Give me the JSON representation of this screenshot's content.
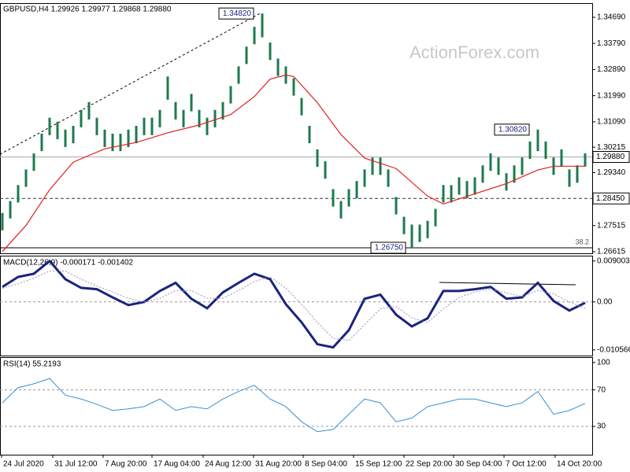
{
  "chart_data": [
    {
      "type": "ohlc",
      "title": "GBPUSD,H4  1.29926 1.29977 1.29868 1.29880",
      "watermark": "ActionForex.com",
      "color": "#1e7a4c",
      "xlim": [
        -0.3,
        74.9
      ],
      "ylim": [
        1.2656,
        1.3515
      ],
      "yticks": [
        {
          "value": 1.3469,
          "label": "1.34690"
        },
        {
          "value": 1.3379,
          "label": "1.33790"
        },
        {
          "value": 1.3289,
          "label": "1.32890"
        },
        {
          "value": 1.3199,
          "label": "1.31990"
        },
        {
          "value": 1.3109,
          "label": "1.31090"
        },
        {
          "value": 1.30215,
          "label": "1.30215"
        },
        {
          "value": 1.2934,
          "label": "1.29340"
        },
        {
          "value": 1.27515,
          "label": "1.27515"
        },
        {
          "value": 1.26615,
          "label": "1.26615"
        }
      ],
      "high": [
        1.2795,
        1.2836,
        1.2891,
        1.2945,
        1.3,
        1.3068,
        1.3123,
        1.3109,
        1.3082,
        1.3095,
        1.315,
        1.3177,
        1.3123,
        1.3082,
        1.3068,
        1.3068,
        1.3082,
        1.3095,
        1.3123,
        1.3123,
        1.315,
        1.3265,
        1.3177,
        1.315,
        1.3205,
        1.315,
        1.3123,
        1.315,
        1.3177,
        1.3232,
        1.33,
        1.3368,
        1.3436,
        1.3482,
        1.3382,
        1.3327,
        1.33,
        1.3259,
        1.3191,
        1.3095,
        1.3014,
        1.2973,
        1.2877,
        1.2836,
        1.2877,
        1.2905,
        1.2945,
        1.2986,
        1.2986,
        1.2945,
        1.285,
        1.2782,
        1.2755,
        1.2755,
        1.2768,
        1.2809,
        1.2891,
        1.2891,
        1.2918,
        1.2905,
        1.2918,
        1.2959,
        1.3,
        1.2986,
        1.2932,
        1.2959,
        1.2986,
        1.3041,
        1.3082,
        1.3041,
        1.2986,
        1.3014,
        1.2945,
        1.2959,
        1.3
      ],
      "low": [
        1.2735,
        1.2776,
        1.2831,
        1.2885,
        1.294,
        1.3008,
        1.3063,
        1.3049,
        1.3022,
        1.3035,
        1.309,
        1.3117,
        1.3063,
        1.3022,
        1.3008,
        1.3008,
        1.3022,
        1.3035,
        1.3063,
        1.3063,
        1.309,
        1.3185,
        1.3117,
        1.309,
        1.3145,
        1.309,
        1.3063,
        1.309,
        1.3117,
        1.3172,
        1.324,
        1.3308,
        1.3376,
        1.34,
        1.3322,
        1.3267,
        1.324,
        1.3199,
        1.3131,
        1.3035,
        1.2954,
        1.2913,
        1.2817,
        1.2776,
        1.2817,
        1.2845,
        1.2885,
        1.2926,
        1.2926,
        1.2885,
        1.279,
        1.2722,
        1.2675,
        1.2695,
        1.2708,
        1.2749,
        1.2831,
        1.2831,
        1.2858,
        1.2845,
        1.2858,
        1.2899,
        1.294,
        1.2926,
        1.2872,
        1.2899,
        1.2926,
        1.2981,
        1.3008,
        1.2981,
        1.2926,
        1.2954,
        1.2885,
        1.2899,
        1.2955
      ],
      "ma": {
        "color": "#e02020",
        "x": [
          0,
          3,
          6,
          9,
          13,
          17,
          21,
          25,
          29,
          32,
          34,
          36,
          37,
          40,
          43,
          46,
          50,
          54,
          56,
          60,
          64,
          68,
          70,
          74
        ],
        "values": [
          1.2662,
          1.2752,
          1.2875,
          1.297,
          1.3016,
          1.3038,
          1.3071,
          1.3098,
          1.3134,
          1.3196,
          1.3256,
          1.327,
          1.3265,
          1.3175,
          1.3065,
          1.2984,
          1.2948,
          1.2853,
          1.2826,
          1.2861,
          1.2896,
          1.2943,
          1.2956,
          1.2956
        ]
      },
      "trendline": {
        "x": [
          -0.3,
          32.7
        ],
        "values": [
          1.2997,
          1.3482
        ]
      },
      "current": {
        "value": 1.2988,
        "label": "1.29880"
      },
      "support": {
        "value": 1.2845,
        "label": "1.28450"
      },
      "fib_level": {
        "price": 1.2675,
        "ratio": 38.2
      },
      "annotations": [
        {
          "x": 31.9,
          "value": 1.3482,
          "label": "1.34820"
        },
        {
          "x": 66.9,
          "value": 1.3082,
          "label": "1.30820"
        },
        {
          "x": 51.2,
          "value": 1.2675,
          "label": "1.26750"
        }
      ]
    },
    {
      "type": "line",
      "title": "MACD(12,26,9) -0.000171 -0.001402",
      "xlim": [
        -0.3,
        74.9
      ],
      "ylim": [
        -0.0118,
        0.01
      ],
      "yticks": [
        0.009003,
        {
          "value": 0,
          "label": "0.00"
        },
        -0.010566
      ],
      "levels": [
        0
      ],
      "series": [
        {
          "color": "#1a237e",
          "style": "solid",
          "x": [
            0,
            2,
            4,
            6,
            8,
            10,
            12,
            14,
            16,
            18,
            20,
            22,
            24,
            26,
            28,
            30,
            32,
            34,
            36,
            38,
            40,
            42,
            44,
            46,
            48,
            50,
            52,
            54,
            56,
            58,
            60,
            62,
            64,
            66,
            68,
            70,
            72,
            74
          ],
          "values": [
            0.0033,
            0.0055,
            0.0062,
            0.009,
            0.005,
            0.0031,
            0.0028,
            0.001,
            -0.0007,
            0.0,
            0.0024,
            0.0042,
            0.0007,
            -0.0014,
            0.0021,
            0.0042,
            0.0062,
            0.005,
            -0.0005,
            -0.0045,
            -0.0093,
            -0.01,
            -0.0062,
            0.0007,
            0.0016,
            -0.0028,
            -0.0054,
            -0.0036,
            0.0024,
            0.0024,
            0.0028,
            0.0033,
            0.0007,
            0.001,
            0.0042,
            0.0002,
            -0.0019,
            -0.0002
          ]
        },
        {
          "color": "#9c8fc0",
          "style": "dotted",
          "x": [
            0,
            2,
            4,
            6,
            8,
            10,
            12,
            14,
            16,
            18,
            20,
            22,
            24,
            26,
            28,
            30,
            32,
            34,
            36,
            38,
            40,
            42,
            44,
            46,
            48,
            50,
            52,
            54,
            56,
            58,
            60,
            62,
            64,
            66,
            68,
            70,
            72,
            74
          ],
          "values": [
            0.003,
            0.004,
            0.0052,
            0.0068,
            0.0068,
            0.005,
            0.0035,
            0.0022,
            0.0008,
            0.0,
            0.0008,
            0.0025,
            0.0025,
            0.0008,
            0.0008,
            0.0025,
            0.0045,
            0.0055,
            0.003,
            -0.0005,
            -0.0045,
            -0.008,
            -0.0085,
            -0.005,
            -0.0015,
            -0.001,
            -0.0035,
            -0.0045,
            -0.0015,
            0.001,
            0.0022,
            0.0028,
            0.002,
            0.0012,
            0.0025,
            0.0018,
            0.0,
            -0.0014
          ]
        }
      ]
    },
    {
      "type": "line",
      "title": "RSI(14) 55.2193",
      "xlim": [
        -0.3,
        74.9
      ],
      "ylim": [
        -1,
        105
      ],
      "yticks": [
        100,
        70,
        30
      ],
      "levels": [
        70,
        30
      ],
      "series": [
        {
          "color": "#3a8fd0",
          "style": "solid",
          "x": [
            0,
            2,
            4,
            6,
            8,
            10,
            12,
            14,
            16,
            18,
            20,
            22,
            24,
            26,
            28,
            30,
            32,
            34,
            36,
            38,
            40,
            42,
            44,
            46,
            48,
            50,
            52,
            54,
            56,
            58,
            60,
            62,
            64,
            66,
            68,
            70,
            72,
            74
          ],
          "values": [
            55.8,
            72.5,
            76.7,
            82.5,
            64.2,
            60,
            54.2,
            47.5,
            49.2,
            51.7,
            60,
            47.5,
            51.7,
            49.2,
            60,
            68.3,
            75,
            60,
            51.7,
            35,
            24.2,
            26.7,
            43.3,
            60,
            55.8,
            35,
            39.2,
            51.7,
            55.8,
            60,
            60,
            55.8,
            51.7,
            55.8,
            68.3,
            43.3,
            47.5,
            55.2
          ]
        }
      ],
      "xticks": [
        {
          "value": -0.1,
          "label": "24 Jul 2020"
        },
        {
          "value": 6.4,
          "label": "31 Jul 12:00"
        },
        {
          "value": 12.8,
          "label": "7 Aug 20:00"
        },
        {
          "value": 19,
          "label": "17 Aug 04:00"
        },
        {
          "value": 25.5,
          "label": "24 Aug 12:00"
        },
        {
          "value": 31.9,
          "label": "31 Aug 20:00"
        },
        {
          "value": 38.2,
          "label": "8 Sep 04:00"
        },
        {
          "value": 44.6,
          "label": "15 Sep 12:00"
        },
        {
          "value": 51,
          "label": "22 Sep 20:00"
        },
        {
          "value": 57.3,
          "label": "30 Sep 04:00"
        },
        {
          "value": 63.7,
          "label": "7 Oct 12:00"
        },
        {
          "value": 70.2,
          "label": "14 Oct 20:00"
        }
      ]
    }
  ]
}
